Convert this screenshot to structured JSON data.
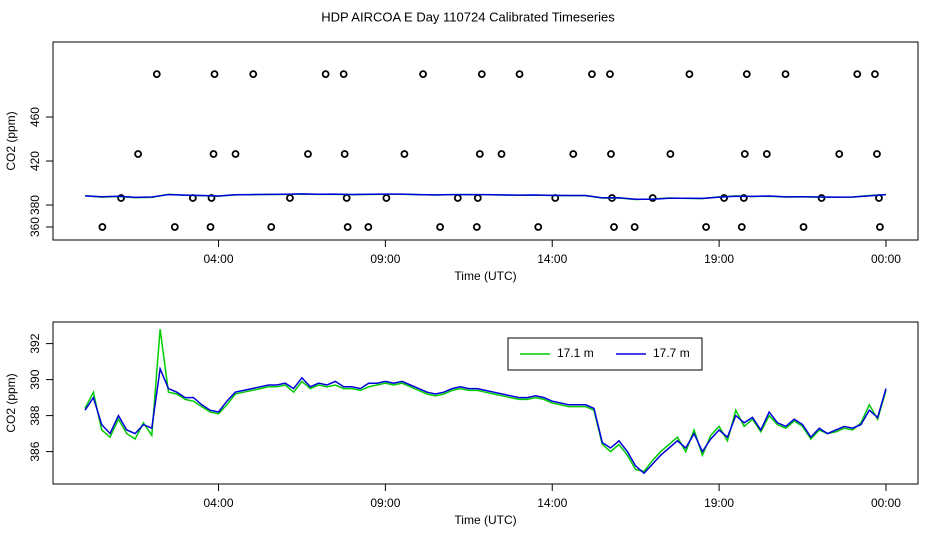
{
  "chart_data": [
    {
      "type": "line",
      "title": "HDP AIRCOA E  Day 110724  Calibrated Timeseries",
      "xlabel": "Time (UTC)",
      "ylabel": "CO2 (ppm)",
      "xlim": [
        -0.96,
        24.96
      ],
      "xticks": [
        {
          "value": 4,
          "label": "04:00"
        },
        {
          "value": 9,
          "label": "09:00"
        },
        {
          "value": 14,
          "label": "14:00"
        },
        {
          "value": 19,
          "label": "19:00"
        },
        {
          "value": 24,
          "label": "00:00"
        }
      ],
      "ylim": [
        348.2,
        528.2
      ],
      "yticks": [
        360,
        380,
        420,
        460
      ],
      "series": [
        {
          "type": "scatter",
          "color": "#000000",
          "x": [
            2.15,
            3.88,
            5.04,
            7.21,
            7.75,
            10.13,
            11.89,
            13.02,
            15.19,
            15.73,
            18.11,
            19.83,
            20.99,
            23.14,
            23.67,
            1.59,
            3.85,
            4.51,
            6.68,
            7.78,
            9.57,
            11.83,
            12.48,
            14.63,
            15.76,
            17.54,
            19.77,
            20.43,
            22.6,
            23.73,
            1.08,
            3.23,
            3.79,
            6.14,
            7.84,
            9.03,
            11.17,
            11.77,
            14.09,
            15.79,
            17.01,
            19.15,
            19.74,
            22.07,
            23.79,
            0.52,
            2.69,
            3.76,
            5.58,
            7.87,
            8.49,
            10.64,
            11.74,
            13.58,
            15.85,
            16.47,
            18.61,
            19.68,
            21.53,
            23.82
          ],
          "values": [
            499,
            499,
            499,
            499,
            499,
            499,
            499,
            499,
            499,
            499,
            499,
            499,
            499,
            499,
            499,
            426.4,
            426.4,
            426.4,
            426.4,
            426.4,
            426.4,
            426.4,
            426.4,
            426.4,
            426.4,
            426.4,
            426.4,
            426.4,
            426.4,
            426.4,
            386.4,
            386.4,
            386.4,
            386.4,
            386.4,
            386.4,
            386.4,
            386.4,
            386.4,
            386.4,
            386.4,
            386.4,
            386.4,
            386.4,
            386.4,
            360,
            360,
            360,
            360,
            360,
            360,
            360,
            360,
            360,
            360,
            360,
            360,
            360,
            360,
            360
          ]
        },
        {
          "type": "line",
          "color": "#00cc00",
          "x": [
            0,
            0.5,
            1,
            1.5,
            2,
            2.5,
            3,
            3.5,
            4,
            4.5,
            5,
            5.5,
            6,
            6.5,
            7,
            7.5,
            8,
            8.5,
            9,
            9.5,
            10,
            10.5,
            11,
            11.5,
            12,
            12.5,
            13,
            13.5,
            14,
            14.5,
            15,
            15.5,
            16,
            16.5,
            17,
            17.5,
            18,
            18.5,
            19,
            19.5,
            20,
            20.5,
            21,
            21.5,
            22,
            22.5,
            23,
            23.5,
            24
          ],
          "values": [
            388.4,
            387.2,
            387.8,
            386.7,
            386.9,
            389.8,
            388.9,
            388.5,
            388.1,
            389.2,
            389.4,
            389.6,
            389.7,
            389.9,
            389.7,
            389.7,
            389.5,
            389.6,
            389.8,
            389.8,
            389.4,
            389.1,
            389.4,
            389.4,
            389.3,
            389.1,
            388.9,
            389.0,
            388.7,
            388.5,
            388.5,
            386.4,
            386.4,
            385.0,
            385.5,
            386.4,
            386.0,
            385.8,
            387.4,
            388.3,
            387.8,
            388.0,
            387.3,
            387.4,
            387.2,
            387.1,
            387.2,
            388.6,
            389.4
          ]
        },
        {
          "type": "line",
          "color": "#0000dd",
          "x": [
            0,
            0.5,
            1,
            1.5,
            2,
            2.5,
            3,
            3.5,
            4,
            4.5,
            5,
            5.5,
            6,
            6.5,
            7,
            7.5,
            8,
            8.5,
            9,
            9.5,
            10,
            10.5,
            11,
            11.5,
            12,
            12.5,
            13,
            13.5,
            14,
            14.5,
            15,
            15.5,
            16,
            16.5,
            17,
            17.5,
            18,
            18.5,
            19,
            19.5,
            20,
            20.5,
            21,
            21.5,
            22,
            22.5,
            23,
            23.5,
            24
          ],
          "values": [
            388.3,
            387.5,
            388.0,
            387.0,
            387.3,
            389.5,
            389.0,
            388.6,
            388.2,
            389.3,
            389.5,
            389.7,
            389.8,
            390.1,
            389.8,
            389.9,
            389.6,
            389.8,
            389.9,
            389.9,
            389.5,
            389.2,
            389.5,
            389.5,
            389.4,
            389.2,
            389.0,
            389.1,
            388.8,
            388.6,
            388.6,
            386.5,
            386.6,
            385.2,
            385.3,
            386.2,
            386.2,
            386.0,
            387.2,
            388.0,
            387.9,
            388.2,
            387.4,
            387.5,
            387.3,
            387.2,
            387.3,
            388.3,
            389.5
          ]
        }
      ]
    },
    {
      "type": "line",
      "xlabel": "Time (UTC)",
      "ylabel": "CO2 (ppm)",
      "legend": "top",
      "xlim": [
        -0.96,
        24.96
      ],
      "xticks": [
        {
          "value": 4,
          "label": "04:00"
        },
        {
          "value": 9,
          "label": "09:00"
        },
        {
          "value": 14,
          "label": "14:00"
        },
        {
          "value": 19,
          "label": "19:00"
        },
        {
          "value": 24,
          "label": "00:00"
        }
      ],
      "ylim": [
        384.2,
        393.2
      ],
      "yticks": [
        386,
        388,
        390,
        392
      ],
      "series": [
        {
          "type": "line",
          "name": "17.1 m",
          "color": "#00cc00",
          "x": [
            0,
            0.25,
            0.5,
            0.75,
            1,
            1.25,
            1.5,
            1.75,
            2,
            2.25,
            2.5,
            2.75,
            3,
            3.25,
            3.5,
            3.75,
            4,
            4.25,
            4.5,
            4.75,
            5,
            5.25,
            5.5,
            5.75,
            6,
            6.25,
            6.5,
            6.75,
            7,
            7.25,
            7.5,
            7.75,
            8,
            8.25,
            8.5,
            8.75,
            9,
            9.25,
            9.5,
            9.75,
            10,
            10.25,
            10.5,
            10.75,
            11,
            11.25,
            11.5,
            11.75,
            12,
            12.25,
            12.5,
            12.75,
            13,
            13.25,
            13.5,
            13.75,
            14,
            14.25,
            14.5,
            14.75,
            15,
            15.25,
            15.5,
            15.75,
            16,
            16.25,
            16.5,
            16.75,
            17,
            17.25,
            17.5,
            17.75,
            18,
            18.25,
            18.5,
            18.75,
            19,
            19.25,
            19.5,
            19.75,
            20,
            20.25,
            20.5,
            20.75,
            21,
            21.25,
            21.5,
            21.75,
            22,
            22.25,
            22.5,
            22.75,
            23,
            23.25,
            23.5,
            23.75,
            24
          ],
          "values": [
            388.4,
            389.3,
            387.2,
            386.8,
            387.8,
            387.0,
            386.7,
            387.6,
            386.9,
            392.8,
            389.3,
            389.2,
            388.9,
            388.8,
            388.5,
            388.2,
            388.1,
            388.6,
            389.2,
            389.3,
            389.4,
            389.5,
            389.6,
            389.6,
            389.7,
            389.3,
            389.9,
            389.5,
            389.7,
            389.6,
            389.7,
            389.5,
            389.5,
            389.4,
            389.6,
            389.7,
            389.8,
            389.7,
            389.8,
            389.6,
            389.4,
            389.2,
            389.1,
            389.2,
            389.4,
            389.5,
            389.4,
            389.4,
            389.3,
            389.2,
            389.1,
            389.0,
            388.9,
            388.9,
            389.0,
            388.9,
            388.7,
            388.6,
            388.5,
            388.5,
            388.5,
            388.3,
            386.4,
            386.0,
            386.4,
            385.8,
            385.0,
            384.9,
            385.5,
            386.0,
            386.4,
            386.8,
            386.0,
            387.2,
            385.8,
            386.9,
            387.4,
            386.6,
            388.3,
            387.4,
            387.8,
            387.1,
            388.0,
            387.5,
            387.3,
            387.7,
            387.4,
            386.7,
            387.2,
            387.0,
            387.1,
            387.3,
            387.2,
            387.6,
            388.6,
            387.8,
            389.4
          ]
        },
        {
          "type": "line",
          "name": "17.7 m",
          "color": "#0000dd",
          "x": [
            0,
            0.25,
            0.5,
            0.75,
            1,
            1.25,
            1.5,
            1.75,
            2,
            2.25,
            2.5,
            2.75,
            3,
            3.25,
            3.5,
            3.75,
            4,
            4.25,
            4.5,
            4.75,
            5,
            5.25,
            5.5,
            5.75,
            6,
            6.25,
            6.5,
            6.75,
            7,
            7.25,
            7.5,
            7.75,
            8,
            8.25,
            8.5,
            8.75,
            9,
            9.25,
            9.5,
            9.75,
            10,
            10.25,
            10.5,
            10.75,
            11,
            11.25,
            11.5,
            11.75,
            12,
            12.25,
            12.5,
            12.75,
            13,
            13.25,
            13.5,
            13.75,
            14,
            14.25,
            14.5,
            14.75,
            15,
            15.25,
            15.5,
            15.75,
            16,
            16.25,
            16.5,
            16.75,
            17,
            17.25,
            17.5,
            17.75,
            18,
            18.25,
            18.5,
            18.75,
            19,
            19.25,
            19.5,
            19.75,
            20,
            20.25,
            20.5,
            20.75,
            21,
            21.25,
            21.5,
            21.75,
            22,
            22.25,
            22.5,
            22.75,
            23,
            23.25,
            23.5,
            23.75,
            24
          ],
          "values": [
            388.3,
            389.0,
            387.5,
            387.0,
            388.0,
            387.2,
            387.0,
            387.5,
            387.3,
            390.6,
            389.5,
            389.3,
            389.0,
            389.0,
            388.6,
            388.3,
            388.2,
            388.8,
            389.3,
            389.4,
            389.5,
            389.6,
            389.7,
            389.7,
            389.8,
            389.5,
            390.1,
            389.6,
            389.8,
            389.7,
            389.9,
            389.6,
            389.6,
            389.5,
            389.8,
            389.8,
            389.9,
            389.8,
            389.9,
            389.7,
            389.5,
            389.3,
            389.2,
            389.3,
            389.5,
            389.6,
            389.5,
            389.5,
            389.4,
            389.3,
            389.2,
            389.1,
            389.0,
            389.0,
            389.1,
            389.0,
            388.8,
            388.7,
            388.6,
            388.6,
            388.6,
            388.4,
            386.5,
            386.2,
            386.6,
            386.0,
            385.2,
            384.8,
            385.3,
            385.8,
            386.2,
            386.6,
            386.2,
            387.0,
            386.0,
            386.7,
            387.2,
            386.8,
            388.0,
            387.6,
            387.9,
            387.2,
            388.2,
            387.6,
            387.4,
            387.8,
            387.5,
            386.8,
            387.3,
            387.0,
            387.2,
            387.4,
            387.3,
            387.5,
            388.3,
            387.9,
            389.5
          ]
        }
      ]
    }
  ]
}
